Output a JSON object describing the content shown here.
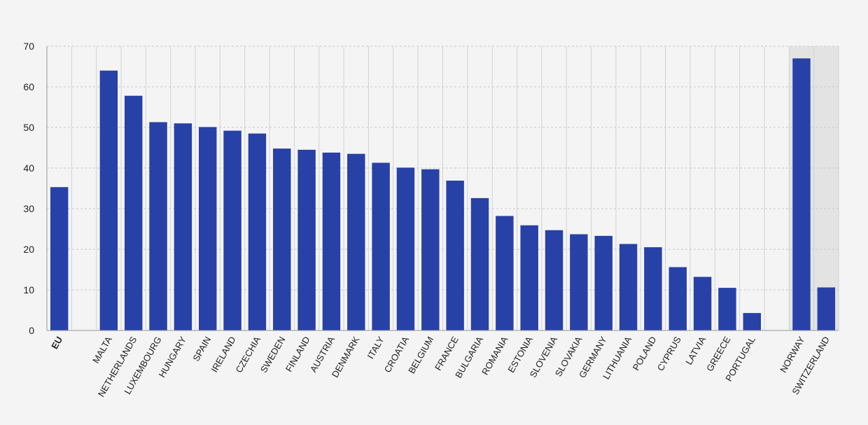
{
  "chart_data": {
    "type": "bar",
    "title": "",
    "xlabel": "",
    "ylabel": "",
    "ylim": [
      0,
      70
    ],
    "yticks": [
      0,
      10,
      20,
      30,
      40,
      50,
      60,
      70
    ],
    "grid": "on",
    "legend": "none",
    "bar_color": "#2841a7",
    "shaded_group_color": "#e3e3e3",
    "categories": [
      "EU",
      "MALTA",
      "NETHERLANDS",
      "LUXEMBOURG",
      "HUNGARY",
      "SPAIN",
      "IRELAND",
      "CZECHIA",
      "SWEDEN",
      "FINLAND",
      "AUSTRIA",
      "DENMARK",
      "ITALY",
      "CROATIA",
      "BELGIUM",
      "FRANCE",
      "BULGARIA",
      "ROMANIA",
      "ESTONIA",
      "SLOVENIA",
      "SLOVAKIA",
      "GERMANY",
      "LITHUANIA",
      "POLAND",
      "CYPRUS",
      "LATVIA",
      "GREECE",
      "PORTUGAL",
      "NORWAY",
      "SWITZERLAND"
    ],
    "values": [
      35.3,
      64.0,
      57.8,
      51.3,
      51.0,
      50.1,
      49.2,
      48.5,
      44.8,
      44.5,
      43.8,
      43.5,
      41.3,
      40.1,
      39.7,
      36.9,
      32.6,
      28.2,
      25.9,
      24.7,
      23.7,
      23.3,
      21.3,
      20.5,
      15.6,
      13.2,
      10.5,
      4.3,
      67.0,
      10.6
    ],
    "groups": [
      "eu",
      "member",
      "member",
      "member",
      "member",
      "member",
      "member",
      "member",
      "member",
      "member",
      "member",
      "member",
      "member",
      "member",
      "member",
      "member",
      "member",
      "member",
      "member",
      "member",
      "member",
      "member",
      "member",
      "member",
      "member",
      "member",
      "member",
      "member",
      "efta",
      "efta"
    ],
    "bold_categories": [
      "EU"
    ]
  }
}
